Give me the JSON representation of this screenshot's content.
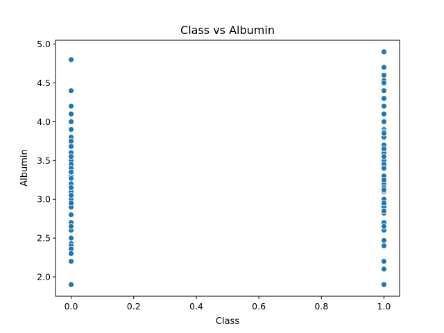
{
  "chart_data": {
    "type": "scatter",
    "title": "Class vs  Albumin",
    "xlabel": "Class",
    "ylabel": "Albumin",
    "xlim": [
      -0.05,
      1.05
    ],
    "ylim": [
      1.75,
      5.05
    ],
    "x_ticks": [
      0.0,
      0.2,
      0.4,
      0.6,
      0.8,
      1.0
    ],
    "x_tick_labels": [
      "0.0",
      "0.2",
      "0.4",
      "0.6",
      "0.8",
      "1.0"
    ],
    "y_ticks": [
      2.0,
      2.5,
      3.0,
      3.5,
      4.0,
      4.5,
      5.0
    ],
    "y_tick_labels": [
      "2.0",
      "2.5",
      "3.0",
      "3.5",
      "4.0",
      "4.5",
      "5.0"
    ],
    "grid": false,
    "color": "#1f77b4",
    "series": [
      {
        "x": [
          0,
          0,
          0,
          0,
          0,
          0,
          0,
          0,
          0,
          0,
          0,
          0,
          0,
          0,
          0,
          0,
          0,
          0,
          0,
          0,
          0,
          0,
          0,
          0,
          0,
          0,
          0,
          0,
          0,
          0,
          0,
          0,
          0,
          0,
          0,
          0
        ],
        "y": [
          4.8,
          4.4,
          4.2,
          4.1,
          4.0,
          3.9,
          3.8,
          3.7,
          3.68,
          3.6,
          3.5,
          3.45,
          3.4,
          3.3,
          3.27,
          3.2,
          3.1,
          3.0,
          2.9,
          2.8,
          2.7,
          2.6,
          2.43,
          2.4,
          2.36,
          2.3,
          2.2,
          1.9,
          3.55,
          3.35,
          2.5,
          3.75,
          3.15,
          2.95,
          2.65,
          3.05
        ]
      },
      {
        "x": [
          1,
          1,
          1,
          1,
          1,
          1,
          1,
          1,
          1,
          1,
          1,
          1,
          1,
          1,
          1,
          1,
          1,
          1,
          1,
          1,
          1,
          1,
          1,
          1,
          1,
          1,
          1,
          1,
          1,
          1,
          1,
          1,
          1,
          1,
          1,
          1,
          1,
          1,
          1,
          1
        ],
        "y": [
          4.9,
          4.7,
          4.6,
          4.53,
          4.5,
          4.4,
          4.3,
          4.2,
          4.1,
          4.0,
          3.9,
          3.87,
          3.8,
          3.7,
          3.6,
          3.5,
          3.45,
          3.4,
          3.3,
          3.2,
          3.15,
          3.1,
          3.0,
          2.9,
          2.82,
          2.7,
          2.6,
          2.47,
          2.4,
          2.2,
          2.1,
          1.9,
          3.85,
          3.65,
          3.55,
          3.25,
          2.95,
          2.85,
          2.65,
          3.12
        ]
      }
    ]
  }
}
